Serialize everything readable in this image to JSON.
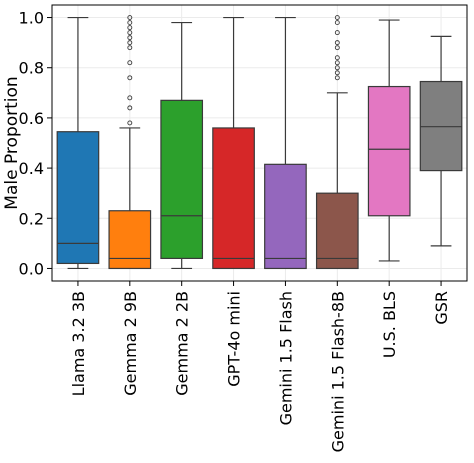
{
  "chart_data": {
    "type": "box",
    "title": "",
    "xlabel": "",
    "ylabel": "Male Proportion",
    "ylim": [
      -0.05,
      1.05
    ],
    "yticks": [
      "0.0",
      "0.2",
      "0.4",
      "0.6",
      "0.8",
      "1.0"
    ],
    "grid": true,
    "legend": "none",
    "categories": [
      "Llama 3.2 3B",
      "Gemma 2 9B",
      "Gemma 2 2B",
      "GPT-4o mini",
      "Gemini 1.5 Flash",
      "Gemini 1.5 Flash-8B",
      "U.S. BLS",
      "GSR"
    ],
    "series": [
      {
        "category": "Llama 3.2 3B",
        "color": "#1f77b4",
        "min": 0.0,
        "q1": 0.02,
        "median": 0.1,
        "q3": 0.545,
        "max": 1.0,
        "outliers": []
      },
      {
        "category": "Gemma 2 9B",
        "color": "#ff7f0e",
        "min": 0.0,
        "q1": 0.0,
        "median": 0.04,
        "q3": 0.23,
        "max": 0.56,
        "outliers": [
          0.58,
          0.64,
          0.68,
          0.76,
          0.82,
          0.88,
          0.9,
          0.92,
          0.94,
          0.96,
          0.98,
          1.0
        ]
      },
      {
        "category": "Gemma 2 2B",
        "color": "#2ca02c",
        "min": 0.0,
        "q1": 0.04,
        "median": 0.21,
        "q3": 0.67,
        "max": 0.98,
        "outliers": []
      },
      {
        "category": "GPT-4o mini",
        "color": "#d62728",
        "min": 0.0,
        "q1": 0.0,
        "median": 0.04,
        "q3": 0.56,
        "max": 1.0,
        "outliers": []
      },
      {
        "category": "Gemini 1.5 Flash",
        "color": "#9467bd",
        "min": 0.0,
        "q1": 0.0,
        "median": 0.04,
        "q3": 0.415,
        "max": 1.0,
        "outliers": []
      },
      {
        "category": "Gemini 1.5 Flash-8B",
        "color": "#8c564b",
        "min": 0.0,
        "q1": 0.0,
        "median": 0.04,
        "q3": 0.3,
        "max": 0.7,
        "outliers": [
          0.76,
          0.78,
          0.8,
          0.82,
          0.84,
          0.88,
          0.9,
          0.94,
          0.98,
          1.0
        ]
      },
      {
        "category": "U.S. BLS",
        "color": "#e377c2",
        "min": 0.03,
        "q1": 0.21,
        "median": 0.475,
        "q3": 0.725,
        "max": 0.99,
        "outliers": []
      },
      {
        "category": "GSR",
        "color": "#7f7f7f",
        "min": 0.09,
        "q1": 0.39,
        "median": 0.565,
        "q3": 0.745,
        "max": 0.925,
        "outliers": []
      }
    ]
  }
}
